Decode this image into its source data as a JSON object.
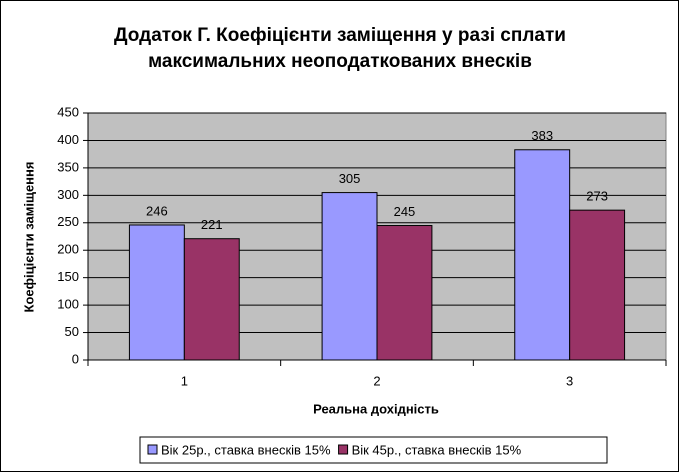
{
  "chart_data": {
    "type": "bar",
    "title": [
      "Додаток Г. Коефіцієнти заміщення у разі сплати",
      "максимальних неоподаткованих внесків"
    ],
    "x_label": "Реальна дохідність",
    "y_label": "Коефіцієнти заміщення",
    "categories": [
      "1",
      "2",
      "3"
    ],
    "series": [
      {
        "name": "Вік 25р., ставка внесків 15%",
        "color": "#9999ff",
        "values": [
          246,
          305,
          383
        ]
      },
      {
        "name": "Вік 45р., ставка внесків 15%",
        "color": "#993366",
        "values": [
          221,
          245,
          273
        ]
      }
    ],
    "ylim": [
      0,
      450
    ],
    "yticks": [
      0,
      50,
      100,
      150,
      200,
      250,
      300,
      350,
      400,
      450
    ],
    "grid": true,
    "legend": "bottom",
    "plot_background": "#c0c0c0"
  }
}
